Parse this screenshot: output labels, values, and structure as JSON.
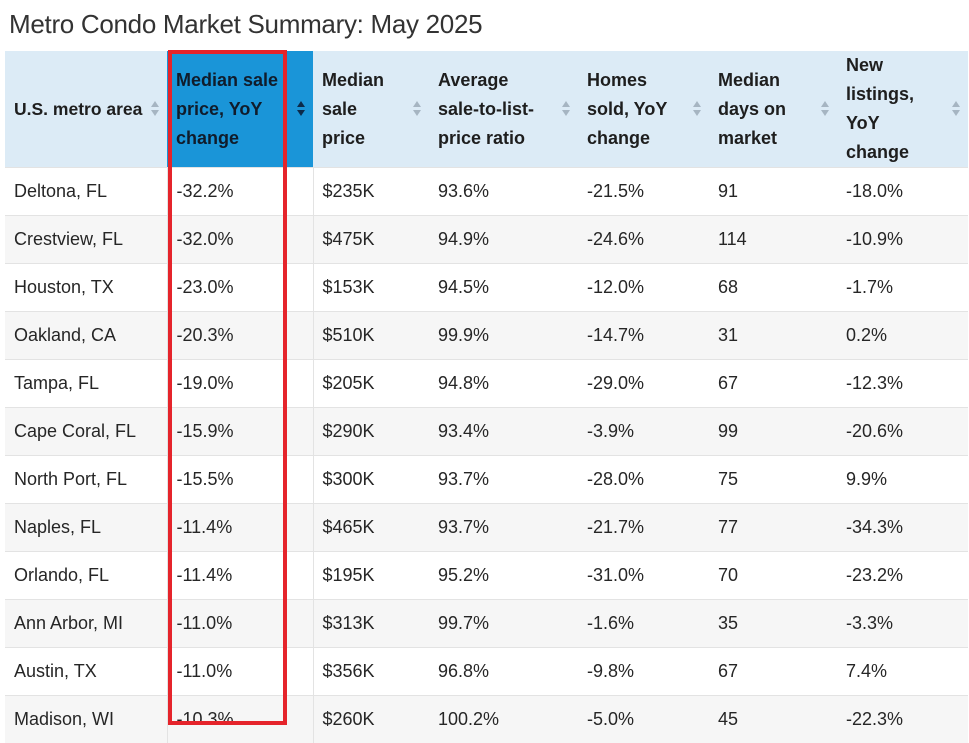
{
  "title": "Metro Condo Market Summary: May 2025",
  "table": {
    "headers": [
      "U.S. metro area",
      "Median sale price, YoY change",
      "Median sale price",
      "Average sale-to-list-price ratio",
      "Homes sold, YoY change",
      "Median days on market",
      "New listings, YoY change"
    ],
    "sorted_column": "Median sale price, YoY change",
    "rows": [
      [
        "Deltona, FL",
        "-32.2%",
        "$235K",
        "93.6%",
        "-21.5%",
        "91",
        "-18.0%"
      ],
      [
        "Crestview, FL",
        "-32.0%",
        "$475K",
        "94.9%",
        "-24.6%",
        "114",
        "-10.9%"
      ],
      [
        "Houston, TX",
        "-23.0%",
        "$153K",
        "94.5%",
        "-12.0%",
        "68",
        "-1.7%"
      ],
      [
        "Oakland, CA",
        "-20.3%",
        "$510K",
        "99.9%",
        "-14.7%",
        "31",
        "0.2%"
      ],
      [
        "Tampa, FL",
        "-19.0%",
        "$205K",
        "94.8%",
        "-29.0%",
        "67",
        "-12.3%"
      ],
      [
        "Cape Coral, FL",
        "-15.9%",
        "$290K",
        "93.4%",
        "-3.9%",
        "99",
        "-20.6%"
      ],
      [
        "North Port, FL",
        "-15.5%",
        "$300K",
        "93.7%",
        "-28.0%",
        "75",
        "9.9%"
      ],
      [
        "Naples, FL",
        "-11.4%",
        "$465K",
        "93.7%",
        "-21.7%",
        "77",
        "-34.3%"
      ],
      [
        "Orlando, FL",
        "-11.4%",
        "$195K",
        "95.2%",
        "-31.0%",
        "70",
        "-23.2%"
      ],
      [
        "Ann Arbor, MI",
        "-11.0%",
        "$313K",
        "99.7%",
        "-1.6%",
        "35",
        "-3.3%"
      ],
      [
        "Austin, TX",
        "-11.0%",
        "$356K",
        "96.8%",
        "-9.8%",
        "67",
        "7.4%"
      ],
      [
        "Madison, WI",
        "-10.3%",
        "$260K",
        "100.2%",
        "-5.0%",
        "45",
        "-22.3%"
      ]
    ]
  },
  "colors": {
    "header_bg": "#dcebf6",
    "sorted_header_bg": "#1a95d8",
    "highlight_border": "#e5242b",
    "row_alt": "#f6f6f6"
  },
  "icons": {
    "sort": "sort-arrows-icon"
  }
}
